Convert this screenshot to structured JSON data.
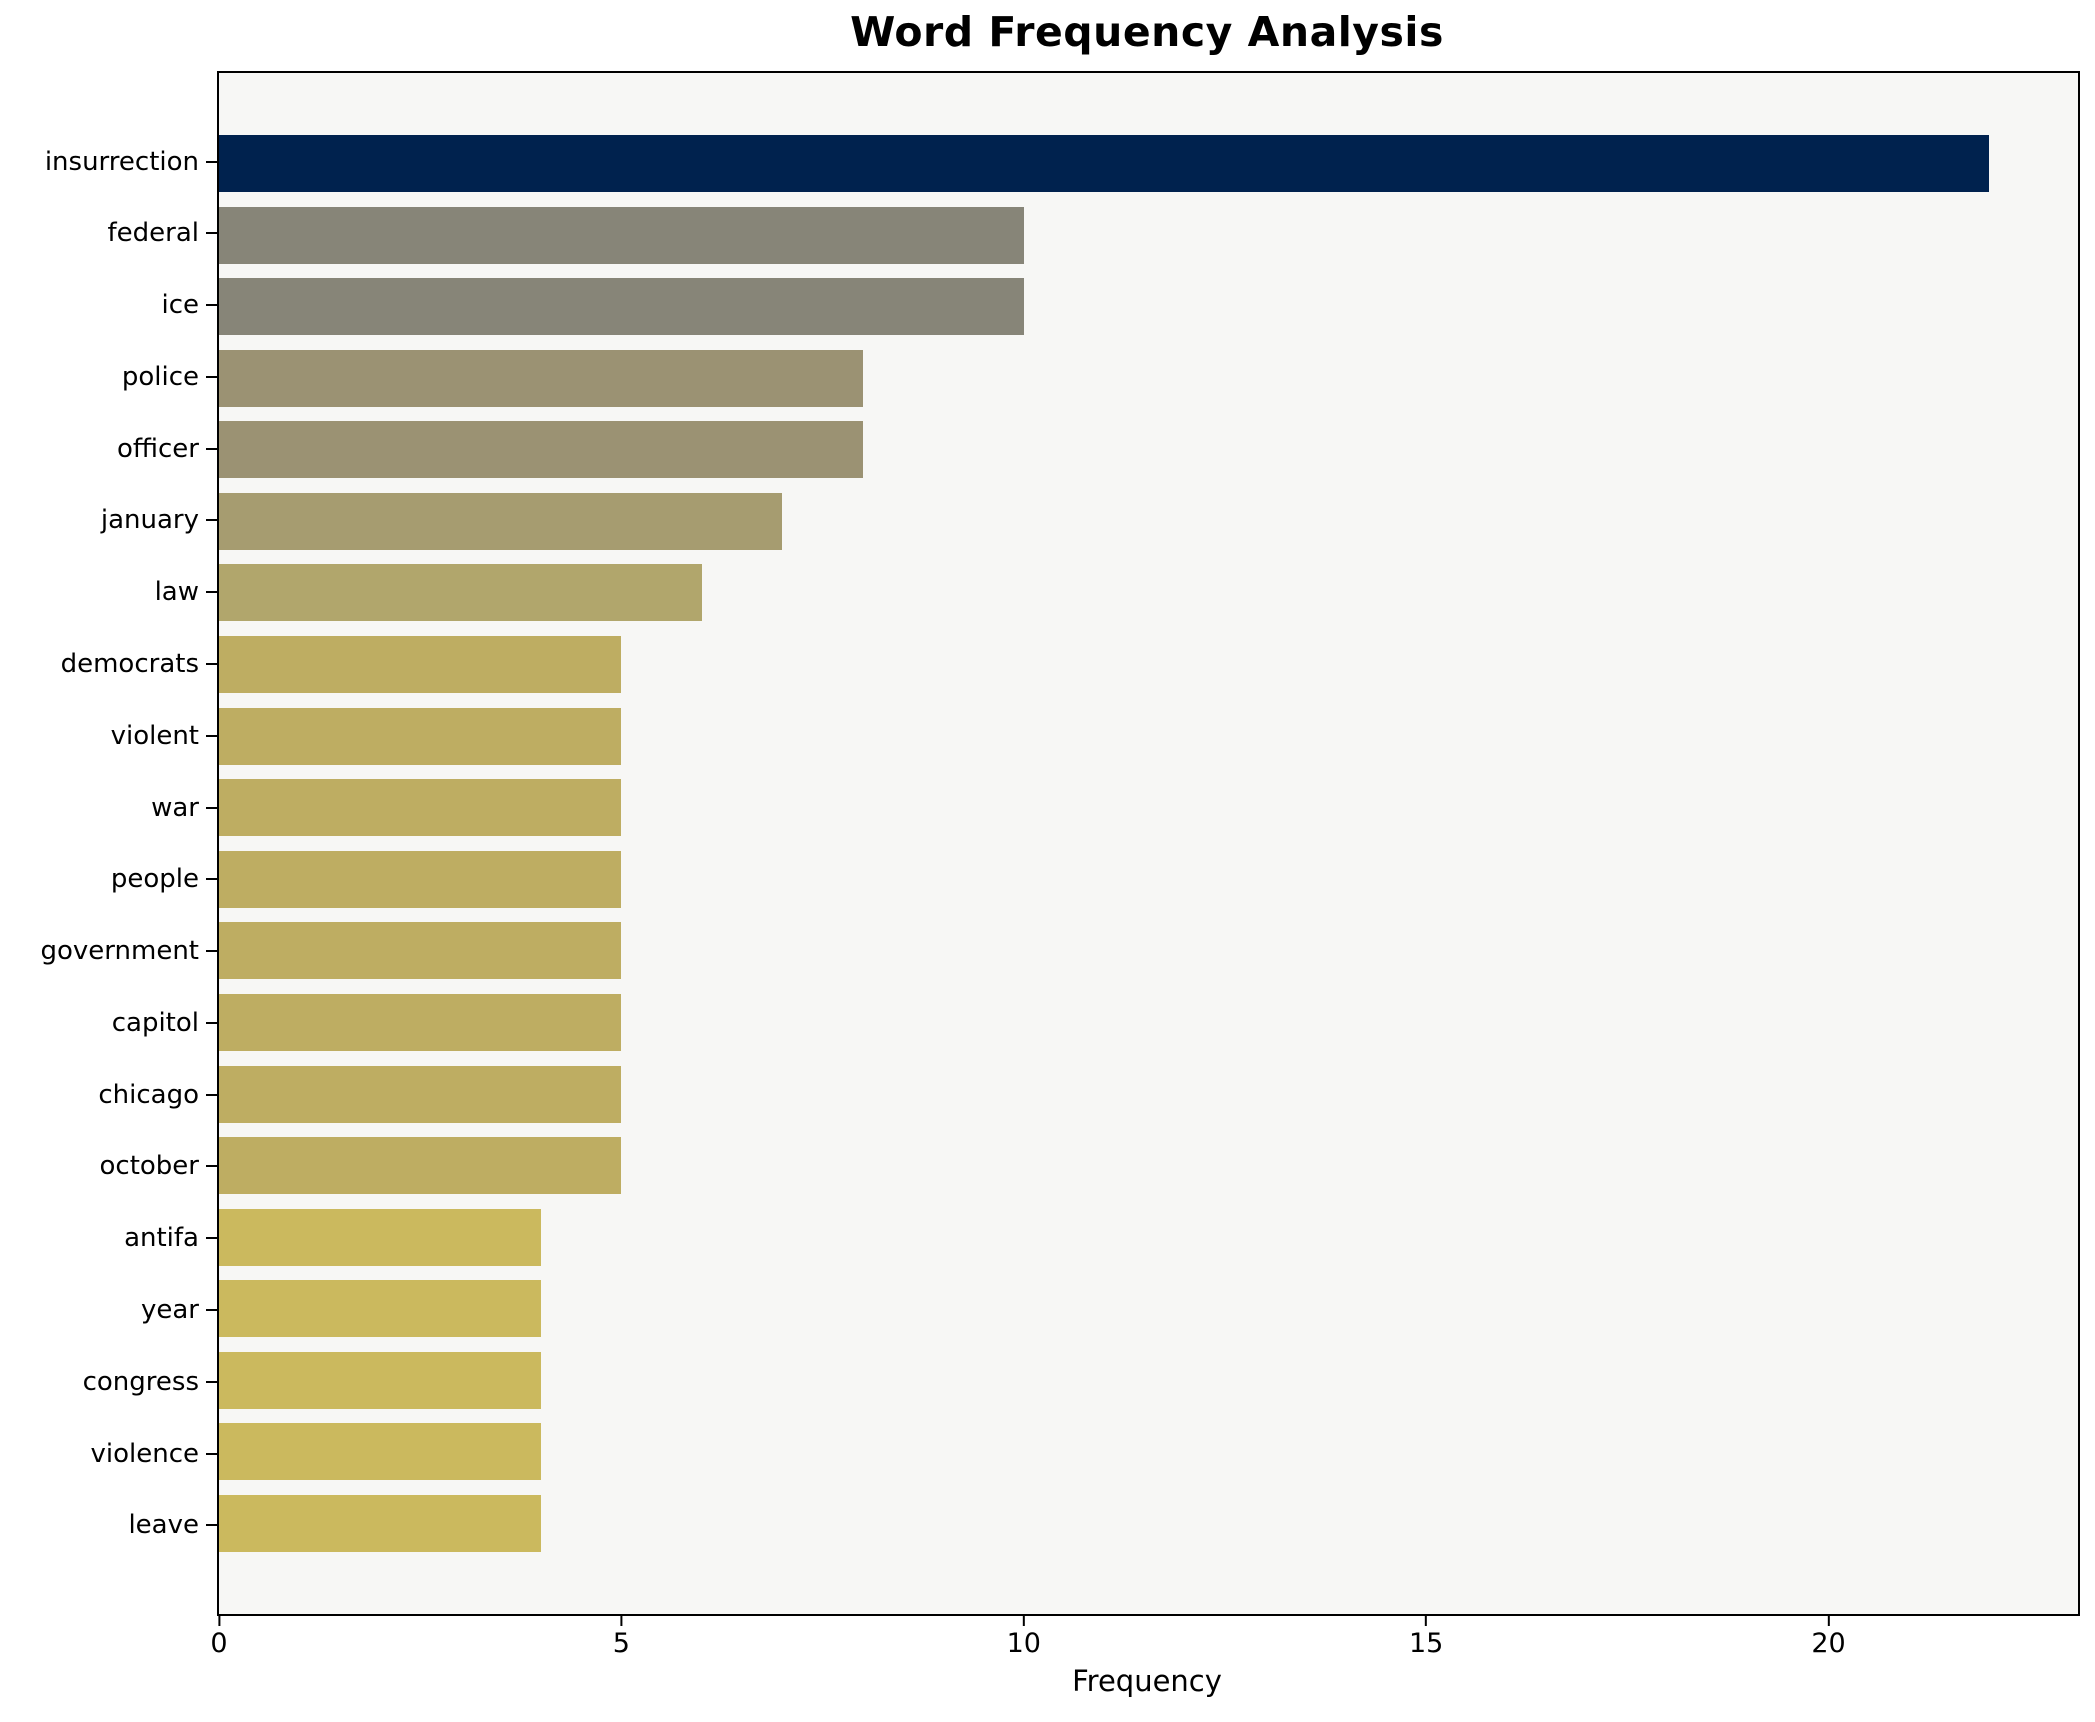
{
  "title": "Word Frequency Analysis",
  "chart_data": {
    "type": "bar",
    "orientation": "horizontal",
    "title": "Word Frequency Analysis",
    "xlabel": "Frequency",
    "ylabel": "",
    "xlim": [
      0,
      23.1
    ],
    "x_ticks": [
      0,
      5,
      10,
      15,
      20
    ],
    "grid": false,
    "legend": null,
    "categories": [
      "insurrection",
      "federal",
      "ice",
      "police",
      "officer",
      "january",
      "law",
      "democrats",
      "violent",
      "war",
      "people",
      "government",
      "capitol",
      "chicago",
      "october",
      "antifa",
      "year",
      "congress",
      "violence",
      "leave"
    ],
    "values": [
      22,
      10,
      10,
      8,
      8,
      7,
      6,
      5,
      5,
      5,
      5,
      5,
      5,
      5,
      5,
      4,
      4,
      4,
      4,
      4
    ],
    "bar_colors": [
      "#00224e",
      "#878578",
      "#878578",
      "#9b9273",
      "#9b9273",
      "#a69c70",
      "#b1a66c",
      "#bead62",
      "#bead62",
      "#bead62",
      "#bead62",
      "#bead62",
      "#bead62",
      "#bead62",
      "#bead62",
      "#cbb95e",
      "#cbb95e",
      "#cbb95e",
      "#cbb95e",
      "#cbb95e"
    ],
    "plot_background": "#f7f7f5",
    "figure_background": "#ffffff",
    "spine_color": "#000000",
    "text_color": "#000000"
  }
}
